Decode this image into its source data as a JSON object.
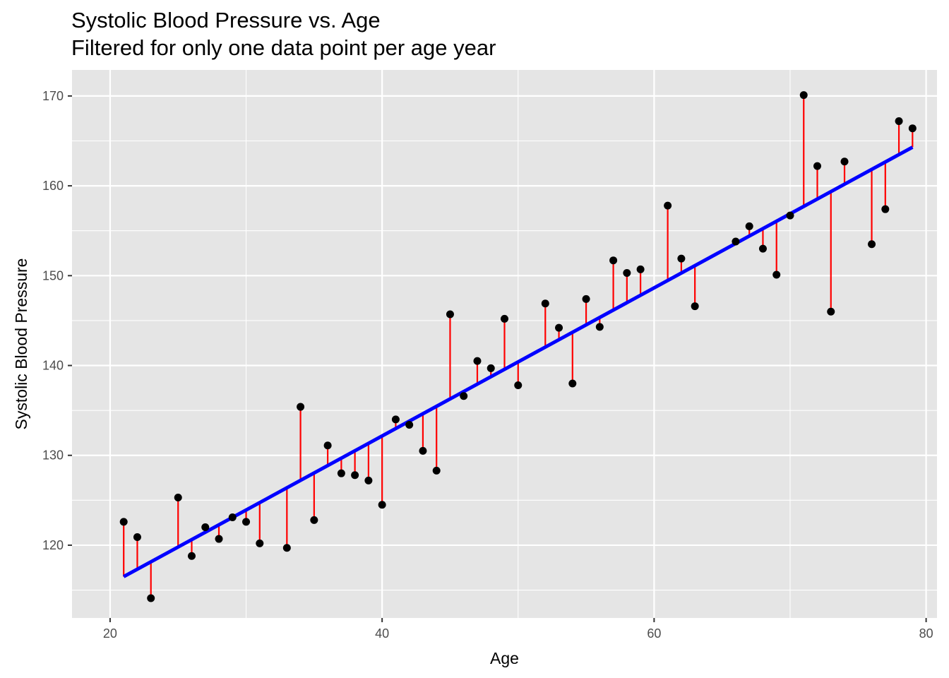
{
  "chart_data": {
    "type": "scatter",
    "title": "Systolic Blood Pressure vs. Age",
    "subtitle": "Filtered for only one data point per age year",
    "xlabel": "Age",
    "ylabel": "Systolic Blood Pressure",
    "xlim": [
      17.2,
      80.8
    ],
    "ylim": [
      111.9,
      172.9
    ],
    "x_ticks": [
      20,
      40,
      60,
      80
    ],
    "y_ticks": [
      120,
      130,
      140,
      150,
      160,
      170
    ],
    "grid": true,
    "legend": "none",
    "colors": {
      "panel": "#e5e5e5",
      "grid": "#ffffff",
      "points": "#000000",
      "residuals": "#ff0000",
      "fit_line": "#0000ff"
    },
    "fit_line": {
      "x": [
        21,
        79
      ],
      "y": [
        116.5,
        164.3
      ]
    },
    "points": [
      {
        "x": 21,
        "y": 122.6
      },
      {
        "x": 22,
        "y": 120.9
      },
      {
        "x": 23,
        "y": 114.1
      },
      {
        "x": 25,
        "y": 125.3
      },
      {
        "x": 26,
        "y": 118.8
      },
      {
        "x": 27,
        "y": 122.0
      },
      {
        "x": 28,
        "y": 120.7
      },
      {
        "x": 29,
        "y": 123.1
      },
      {
        "x": 30,
        "y": 122.6
      },
      {
        "x": 31,
        "y": 120.2
      },
      {
        "x": 33,
        "y": 119.7
      },
      {
        "x": 34,
        "y": 135.4
      },
      {
        "x": 35,
        "y": 122.8
      },
      {
        "x": 36,
        "y": 131.1
      },
      {
        "x": 37,
        "y": 128.0
      },
      {
        "x": 38,
        "y": 127.8
      },
      {
        "x": 39,
        "y": 127.2
      },
      {
        "x": 40,
        "y": 124.5
      },
      {
        "x": 41,
        "y": 134.0
      },
      {
        "x": 42,
        "y": 133.4
      },
      {
        "x": 43,
        "y": 130.5
      },
      {
        "x": 44,
        "y": 128.3
      },
      {
        "x": 45,
        "y": 145.7
      },
      {
        "x": 46,
        "y": 136.6
      },
      {
        "x": 47,
        "y": 140.5
      },
      {
        "x": 48,
        "y": 139.7
      },
      {
        "x": 49,
        "y": 145.2
      },
      {
        "x": 50,
        "y": 137.8
      },
      {
        "x": 52,
        "y": 146.9
      },
      {
        "x": 53,
        "y": 144.2
      },
      {
        "x": 54,
        "y": 138.0
      },
      {
        "x": 55,
        "y": 147.4
      },
      {
        "x": 56,
        "y": 144.3
      },
      {
        "x": 57,
        "y": 151.7
      },
      {
        "x": 58,
        "y": 150.3
      },
      {
        "x": 59,
        "y": 150.7
      },
      {
        "x": 61,
        "y": 157.8
      },
      {
        "x": 62,
        "y": 151.9
      },
      {
        "x": 63,
        "y": 146.6
      },
      {
        "x": 66,
        "y": 153.8
      },
      {
        "x": 67,
        "y": 155.5
      },
      {
        "x": 68,
        "y": 153.0
      },
      {
        "x": 69,
        "y": 150.1
      },
      {
        "x": 70,
        "y": 156.7
      },
      {
        "x": 71,
        "y": 170.1
      },
      {
        "x": 72,
        "y": 162.2
      },
      {
        "x": 73,
        "y": 146.0
      },
      {
        "x": 74,
        "y": 162.7
      },
      {
        "x": 76,
        "y": 153.5
      },
      {
        "x": 77,
        "y": 157.4
      },
      {
        "x": 78,
        "y": 167.2
      },
      {
        "x": 79,
        "y": 166.4
      }
    ]
  }
}
